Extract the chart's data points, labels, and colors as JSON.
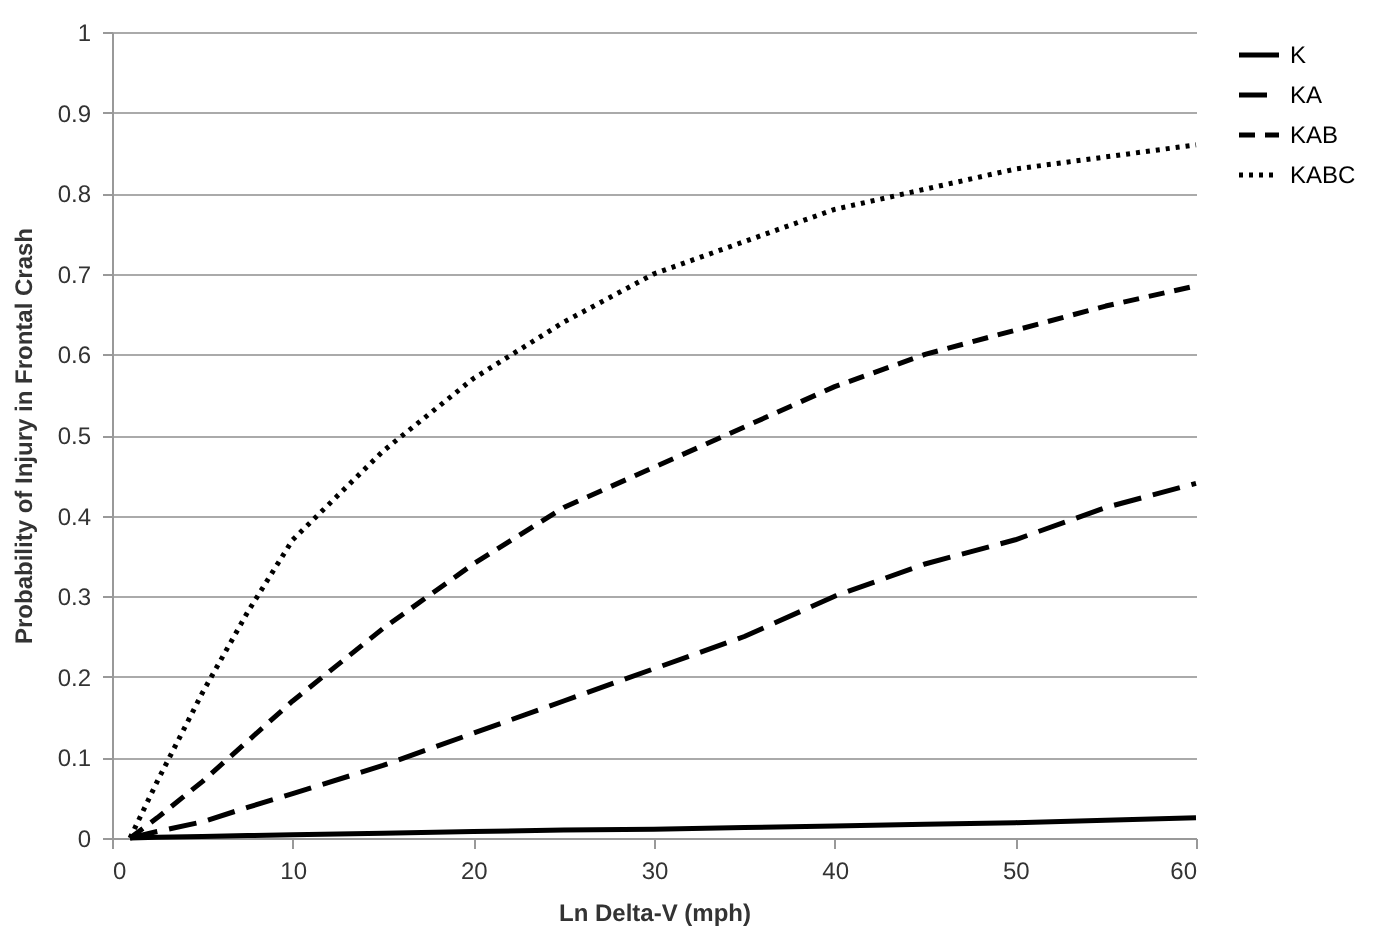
{
  "chart_data": {
    "type": "line",
    "xlabel": "Ln Delta-V (mph)",
    "ylabel": "Probability of Injury in Frontal Crash",
    "x": [
      1,
      2.5,
      5,
      7.5,
      10,
      15,
      20,
      25,
      30,
      35,
      40,
      45,
      50,
      55,
      60
    ],
    "series": [
      {
        "name": "K",
        "color": "#000000",
        "line_style": "solid",
        "values": [
          0,
          0.001,
          0.002,
          0.003,
          0.004,
          0.006,
          0.008,
          0.01,
          0.011,
          0.013,
          0.015,
          0.017,
          0.019,
          0.022,
          0.025
        ]
      },
      {
        "name": "KA",
        "color": "#000000",
        "line_style": "dashed",
        "values": [
          0,
          0.008,
          0.02,
          0.038,
          0.055,
          0.09,
          0.13,
          0.17,
          0.21,
          0.25,
          0.3,
          0.34,
          0.37,
          0.41,
          0.44
        ]
      },
      {
        "name": "KAB",
        "color": "#000000",
        "line_style": "dashed",
        "values": [
          0,
          0.025,
          0.07,
          0.12,
          0.17,
          0.26,
          0.34,
          0.41,
          0.46,
          0.51,
          0.56,
          0.6,
          0.63,
          0.66,
          0.685
        ]
      },
      {
        "name": "KABC",
        "color": "#000000",
        "line_style": "dotted",
        "values": [
          0,
          0.07,
          0.18,
          0.28,
          0.37,
          0.48,
          0.57,
          0.64,
          0.7,
          0.74,
          0.78,
          0.805,
          0.83,
          0.845,
          0.86
        ]
      }
    ],
    "xlim": [
      0,
      60
    ],
    "xticks": [
      0,
      10,
      20,
      30,
      40,
      50,
      60
    ],
    "ylim": [
      0,
      1
    ],
    "yticks": [
      0,
      0.1,
      0.2,
      0.3,
      0.4,
      0.5,
      0.6,
      0.7,
      0.8,
      0.9,
      1
    ],
    "grid": "y",
    "legend": "right",
    "marker": "none"
  }
}
